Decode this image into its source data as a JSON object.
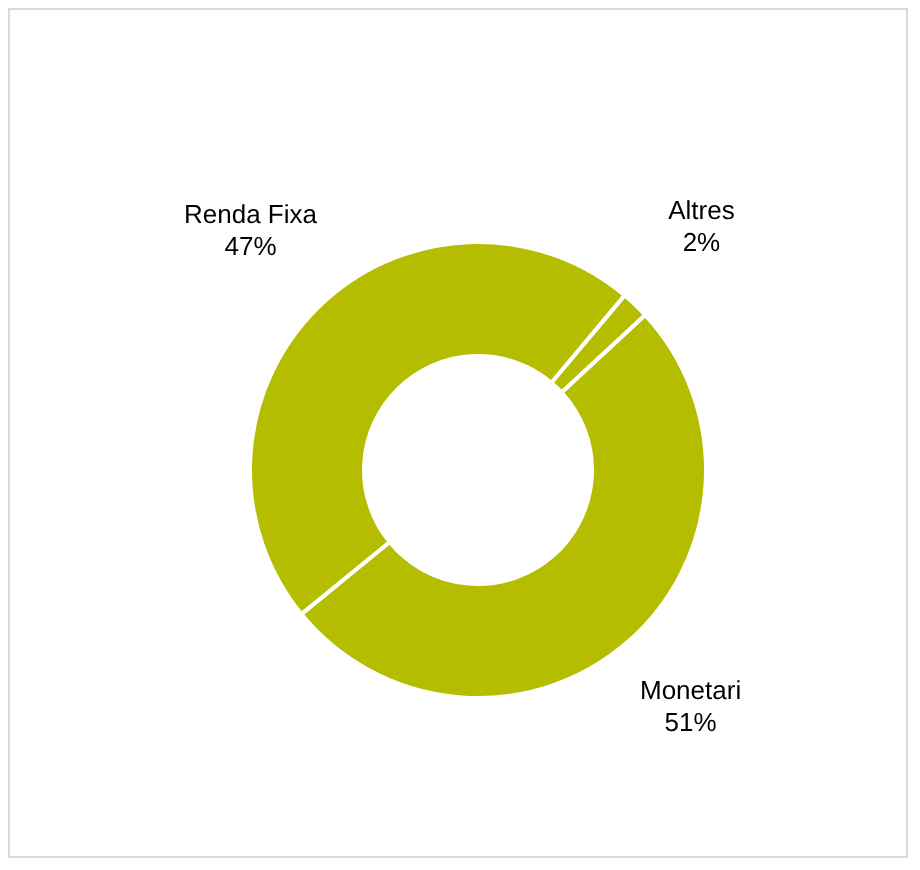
{
  "chart_data": {
    "type": "donut",
    "categories": [
      "Altres",
      "Monetari",
      "Renda Fixa"
    ],
    "values": [
      2,
      51,
      47
    ],
    "colors": [
      "#b5bd00",
      "#b5bd00",
      "#b5bd00"
    ],
    "value_labels": [
      "2%",
      "51%",
      "47%"
    ],
    "legend": false
  }
}
